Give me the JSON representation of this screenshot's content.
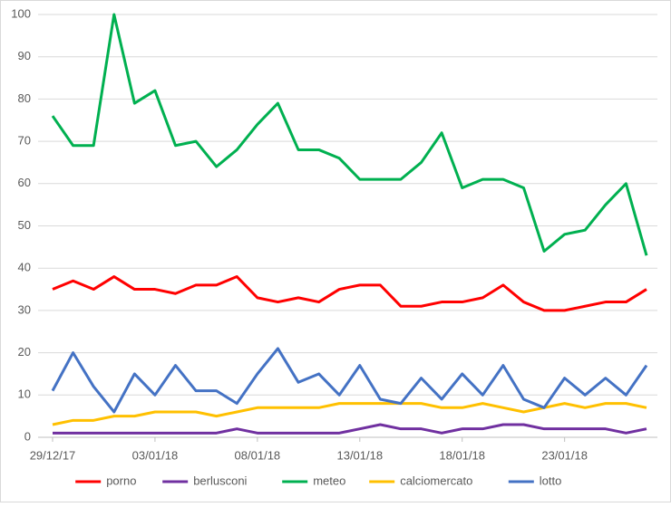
{
  "chart_data": {
    "type": "line",
    "categories": [
      "29/12/17",
      null,
      null,
      null,
      null,
      "03/01/18",
      null,
      null,
      null,
      null,
      "08/01/18",
      null,
      null,
      null,
      null,
      "13/01/18",
      null,
      null,
      null,
      null,
      "18/01/18",
      null,
      null,
      null,
      null,
      "23/01/18",
      null,
      null,
      null,
      null
    ],
    "series": [
      {
        "name": "porno",
        "color": "#ff0000",
        "values": [
          35,
          37,
          35,
          38,
          35,
          35,
          34,
          36,
          36,
          38,
          33,
          32,
          33,
          32,
          35,
          36,
          36,
          31,
          31,
          32,
          32,
          33,
          36,
          32,
          30,
          30,
          31,
          32,
          32,
          35
        ]
      },
      {
        "name": "berlusconi",
        "color": "#7030a0",
        "values": [
          1,
          1,
          1,
          1,
          1,
          1,
          1,
          1,
          1,
          2,
          1,
          1,
          1,
          1,
          1,
          2,
          3,
          2,
          2,
          1,
          2,
          2,
          3,
          3,
          2,
          2,
          2,
          2,
          1,
          2
        ]
      },
      {
        "name": "meteo",
        "color": "#00b050",
        "values": [
          76,
          69,
          69,
          100,
          79,
          82,
          69,
          70,
          64,
          68,
          74,
          79,
          68,
          68,
          66,
          61,
          61,
          61,
          65,
          72,
          59,
          61,
          61,
          59,
          44,
          48,
          49,
          55,
          60,
          43
        ]
      },
      {
        "name": "calciomercato",
        "color": "#ffc000",
        "values": [
          3,
          4,
          4,
          5,
          5,
          6,
          6,
          6,
          5,
          6,
          7,
          7,
          7,
          7,
          8,
          8,
          8,
          8,
          8,
          7,
          7,
          8,
          7,
          6,
          7,
          8,
          7,
          8,
          8,
          7
        ]
      },
      {
        "name": "lotto",
        "color": "#4472c4",
        "values": [
          11,
          20,
          12,
          6,
          15,
          10,
          17,
          11,
          11,
          8,
          15,
          21,
          13,
          15,
          10,
          17,
          9,
          8,
          14,
          9,
          15,
          10,
          17,
          9,
          7,
          14,
          10,
          14,
          10,
          17
        ]
      }
    ],
    "ylim": [
      0,
      100
    ],
    "yticks": [
      0,
      10,
      20,
      30,
      40,
      50,
      60,
      70,
      80,
      90,
      100
    ],
    "grid": true,
    "legend": "bottom"
  }
}
